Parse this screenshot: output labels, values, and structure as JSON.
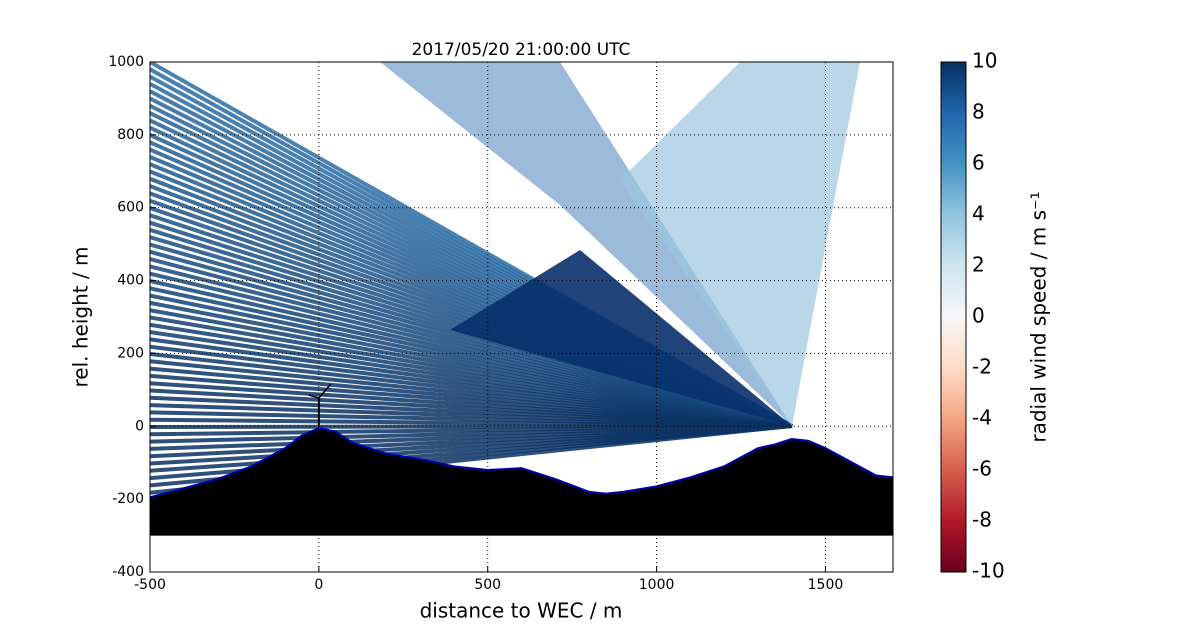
{
  "chart_data": {
    "type": "area",
    "title": "2017/05/20 21:00:00 UTC",
    "x_label": "distance to WEC / m",
    "y_label": "rel. height / m",
    "xlim": [
      -500,
      1700
    ],
    "ylim": [
      -400,
      1000
    ],
    "xticks": [
      -500,
      0,
      500,
      1000,
      1500
    ],
    "yticks": [
      -400,
      -200,
      0,
      200,
      400,
      600,
      800,
      1000
    ],
    "grid": true,
    "series": [
      {
        "color": "#000000",
        "edge_color": "#0000aa",
        "x": [
          -500,
          -400,
          -300,
          -200,
          -100,
          -50,
          0,
          50,
          100,
          200,
          300,
          400,
          500,
          600,
          700,
          800,
          850,
          900,
          1000,
          1100,
          1200,
          1300,
          1350,
          1400,
          1450,
          1500,
          1600,
          1650,
          1700
        ],
        "values": [
          -195,
          -170,
          -145,
          -110,
          -60,
          -25,
          -5,
          -15,
          -45,
          -75,
          -90,
          -110,
          -120,
          -115,
          -145,
          -180,
          -185,
          -180,
          -165,
          -140,
          -110,
          -60,
          -50,
          -35,
          -40,
          -60,
          -110,
          -135,
          -140
        ],
        "base": -300
      }
    ],
    "colorbar": {
      "label": "radial wind speed / m s⁻¹",
      "lim": [
        -10,
        10
      ],
      "ticks": [
        -10,
        -8,
        -6,
        -4,
        -2,
        0,
        2,
        4,
        6,
        8,
        10
      ],
      "colors": [
        "#67001f",
        "#b2182b",
        "#d6604d",
        "#f4a582",
        "#fddbc7",
        "#f7f7f7",
        "#d1e5f0",
        "#92c5de",
        "#4393c3",
        "#2166ac",
        "#053061"
      ]
    }
  }
}
